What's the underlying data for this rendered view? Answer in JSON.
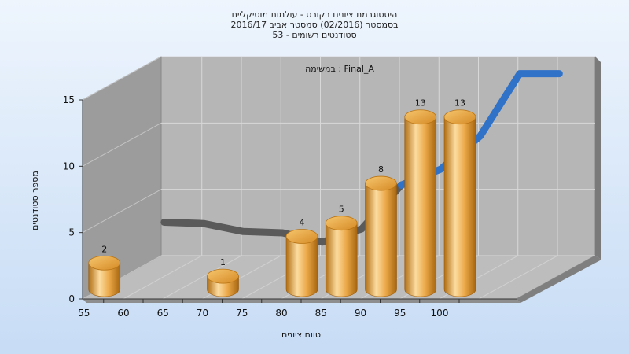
{
  "chart_data": {
    "type": "bar",
    "title_lines": [
      "היסטוגרמת ציונים בקורס - עולמות מוסיקליים",
      "בסמסטר  (02/2016)  סמסטר אביב 2016/17",
      "סטודנטים רשומים - 53"
    ],
    "annotation": "במשימה : Final_A",
    "xlabel": "טווח ציונים",
    "ylabel": "מספר סטודנטים",
    "x_ticks": [
      "55",
      "60",
      "65",
      "70",
      "75",
      "80",
      "85",
      "90",
      "95",
      "100"
    ],
    "y_ticks": [
      "0",
      "5",
      "10",
      "15"
    ],
    "ylim": [
      0,
      15
    ],
    "bars": [
      {
        "x": 55,
        "value": 2,
        "label": "2"
      },
      {
        "x": 70,
        "value": 1,
        "label": "1"
      },
      {
        "x": 80,
        "value": 4,
        "label": "4"
      },
      {
        "x": 85,
        "value": 5,
        "label": "5"
      },
      {
        "x": 90,
        "value": 8,
        "label": "8"
      },
      {
        "x": 95,
        "value": 13,
        "label": "13"
      },
      {
        "x": 100,
        "value": 13,
        "label": "13"
      }
    ],
    "curve": [
      {
        "x": 55,
        "y": 4
      },
      {
        "x": 60,
        "y": 3.9
      },
      {
        "x": 65,
        "y": 3.3
      },
      {
        "x": 70,
        "y": 3.2
      },
      {
        "x": 75,
        "y": 2.5
      },
      {
        "x": 80,
        "y": 3.5
      },
      {
        "x": 85,
        "y": 6.8
      },
      {
        "x": 90,
        "y": 8
      },
      {
        "x": 95,
        "y": 10.5
      },
      {
        "x": 100,
        "y": 15.2
      },
      {
        "x": 105,
        "y": 15.2
      }
    ],
    "colors": {
      "bar": "#e8a33c",
      "bar_light": "#fbe0a8",
      "bar_dark": "#a8660f",
      "curve_low": "#5a5a5a",
      "curve_high": "#2f72c8",
      "side_wall": "#9c9c9c",
      "back_wall": "#b6b6b6",
      "floor": "#bdbdbd"
    },
    "grid": true
  }
}
